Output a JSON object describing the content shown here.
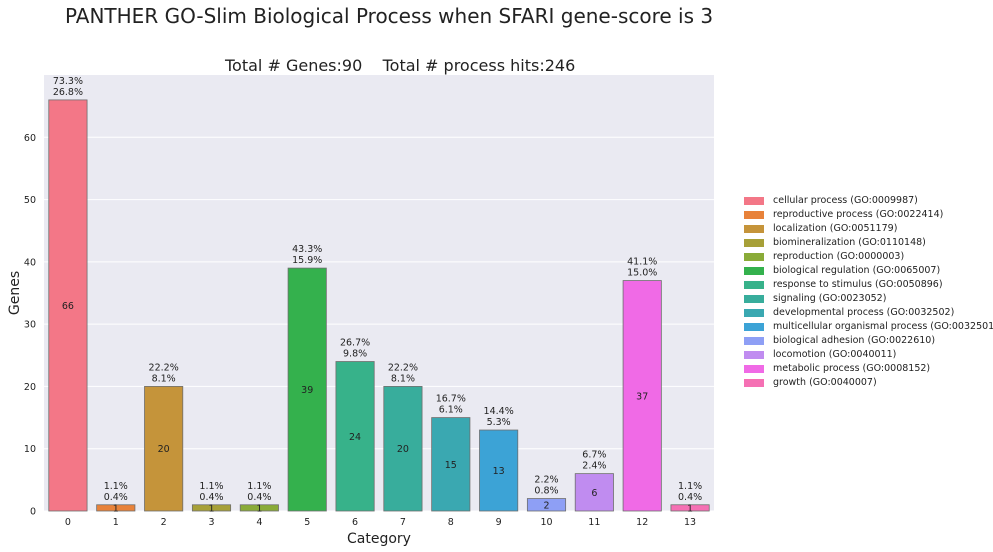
{
  "chart_data": {
    "type": "bar",
    "title": "PANTHER GO-Slim Biological Process when SFARI gene-score is 3",
    "subtitle": "Total # Genes:90    Total # process hits:246",
    "xlabel": "Category",
    "ylabel": "Genes",
    "ylim": [
      0,
      70
    ],
    "yticks": [
      0,
      10,
      20,
      30,
      40,
      50,
      60
    ],
    "grid": true,
    "legend_position": "right",
    "categories": [
      "0",
      "1",
      "2",
      "3",
      "4",
      "5",
      "6",
      "7",
      "8",
      "9",
      "10",
      "11",
      "12",
      "13"
    ],
    "values": [
      66,
      1,
      20,
      1,
      1,
      39,
      24,
      20,
      15,
      13,
      2,
      6,
      37,
      1
    ],
    "pct_genes": [
      "73.3%",
      "1.1%",
      "22.2%",
      "1.1%",
      "1.1%",
      "43.3%",
      "26.7%",
      "22.2%",
      "16.7%",
      "14.4%",
      "2.2%",
      "6.7%",
      "41.1%",
      "1.1%"
    ],
    "pct_hits": [
      "26.8%",
      "0.4%",
      "8.1%",
      "0.4%",
      "0.4%",
      "15.9%",
      "9.8%",
      "8.1%",
      "6.1%",
      "5.3%",
      "0.8%",
      "2.4%",
      "15.0%",
      "0.4%"
    ],
    "colors": [
      "#f37787",
      "#e8823a",
      "#c5943a",
      "#a7a038",
      "#8aab38",
      "#34b14d",
      "#37b28a",
      "#38ad9c",
      "#3aa8b1",
      "#3ca3d6",
      "#8e9ff5",
      "#c08cf0",
      "#f06ae6",
      "#f570b4"
    ],
    "legend": [
      "cellular process (GO:0009987)",
      "reproductive process (GO:0022414)",
      "localization (GO:0051179)",
      "biomineralization (GO:0110148)",
      "reproduction (GO:0000003)",
      "biological regulation (GO:0065007)",
      "response to stimulus (GO:0050896)",
      "signaling (GO:0023052)",
      "developmental process (GO:0032502)",
      "multicellular organismal process (GO:0032501)",
      "biological adhesion (GO:0022610)",
      "locomotion (GO:0040011)",
      "metabolic process (GO:0008152)",
      "growth (GO:0040007)"
    ]
  }
}
